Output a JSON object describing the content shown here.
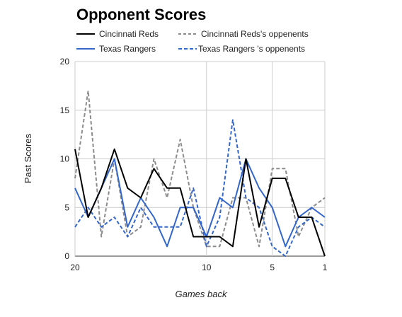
{
  "chart_data": {
    "type": "line",
    "title": "Opponent Scores",
    "xlabel": "Games back",
    "ylabel": "Past Scores",
    "xlim": [
      20,
      1
    ],
    "ylim": [
      0,
      20
    ],
    "x_ticks": [
      20,
      10,
      5,
      1
    ],
    "y_ticks": [
      0,
      5,
      10,
      15,
      20
    ],
    "grid": true,
    "legend_position": "top",
    "x": [
      20,
      19,
      18,
      17,
      16,
      15,
      14,
      13,
      12,
      11,
      10,
      9,
      8,
      7,
      6,
      5,
      4,
      3,
      2,
      1
    ],
    "series": [
      {
        "name": "Cincinnati Reds",
        "color": "#000000",
        "dash": "solid",
        "values": [
          11,
          4,
          7,
          11,
          7,
          6,
          9,
          7,
          7,
          2,
          2,
          2,
          1,
          10,
          3,
          8,
          8,
          4,
          4,
          0
        ]
      },
      {
        "name": "Cincinnati Reds's oppenents",
        "color": "#8c8c8c",
        "dash": "dashed",
        "values": [
          8,
          17,
          2,
          10,
          2,
          3,
          10,
          6,
          12,
          5,
          1,
          1,
          6,
          6,
          1,
          9,
          9,
          2,
          5,
          6
        ]
      },
      {
        "name": "Texas Rangers",
        "color": "#3366cc",
        "dash": "solid",
        "values": [
          7,
          4,
          7,
          10,
          3,
          6,
          4,
          1,
          5,
          5,
          2,
          6,
          5,
          10,
          7,
          5,
          1,
          4,
          5,
          4
        ]
      },
      {
        "name": "Texas Rangers 's oppenents",
        "color": "#3366cc",
        "dash": "dashed",
        "values": [
          3,
          5,
          3,
          4,
          2,
          5,
          3,
          3,
          3,
          7,
          1,
          4,
          14,
          6,
          5,
          1,
          0,
          3,
          4,
          3
        ]
      }
    ]
  }
}
